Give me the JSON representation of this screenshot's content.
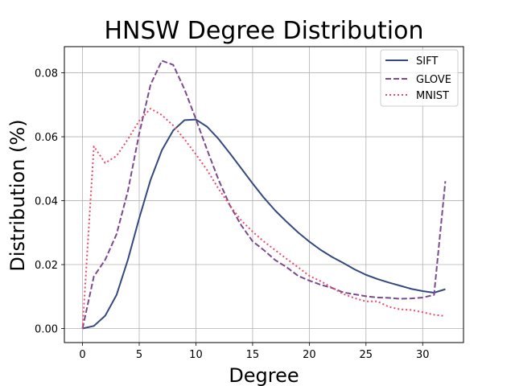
{
  "chart_data": {
    "type": "line",
    "title": "HNSW Degree Distribution",
    "xlabel": "Degree",
    "ylabel": "Distribution (%)",
    "xlim": [
      -1.6,
      33.6
    ],
    "ylim": [
      -0.0044,
      0.0882
    ],
    "xticks": [
      0,
      5,
      10,
      15,
      20,
      25,
      30
    ],
    "yticks": [
      0.0,
      0.02,
      0.04,
      0.06,
      0.08
    ],
    "xtick_labels": [
      "0",
      "5",
      "10",
      "15",
      "20",
      "25",
      "30"
    ],
    "ytick_labels": [
      "0.00",
      "0.02",
      "0.04",
      "0.06",
      "0.08"
    ],
    "grid": true,
    "legend_position": "top-right",
    "series": [
      {
        "name": "SIFT",
        "color": "#344a7f",
        "style": "solid",
        "x": [
          0,
          1,
          2,
          3,
          4,
          5,
          6,
          7,
          8,
          9,
          10,
          11,
          12,
          13,
          14,
          15,
          16,
          17,
          18,
          19,
          20,
          21,
          22,
          23,
          24,
          25,
          26,
          27,
          28,
          29,
          30,
          31,
          32
        ],
        "y": [
          0.0,
          0.0008,
          0.004,
          0.0105,
          0.0215,
          0.0345,
          0.0465,
          0.0558,
          0.062,
          0.0652,
          0.0654,
          0.0631,
          0.0593,
          0.0548,
          0.0501,
          0.0454,
          0.0409,
          0.0369,
          0.0334,
          0.0301,
          0.0272,
          0.0246,
          0.0224,
          0.0205,
          0.0185,
          0.0168,
          0.0155,
          0.0144,
          0.0134,
          0.0124,
          0.0117,
          0.0112,
          0.0123
        ]
      },
      {
        "name": "GLOVE",
        "color": "#7b4a8e",
        "style": "dashed",
        "x": [
          0,
          1,
          2,
          3,
          4,
          5,
          6,
          7,
          8,
          9,
          10,
          11,
          12,
          13,
          14,
          15,
          16,
          17,
          18,
          19,
          20,
          21,
          22,
          23,
          24,
          25,
          26,
          27,
          28,
          29,
          30,
          31,
          32
        ],
        "y": [
          0.0,
          0.0163,
          0.0215,
          0.0295,
          0.043,
          0.061,
          0.0763,
          0.0838,
          0.0825,
          0.0748,
          0.0655,
          0.0558,
          0.0465,
          0.0385,
          0.0323,
          0.0273,
          0.0245,
          0.0214,
          0.0192,
          0.0165,
          0.015,
          0.0137,
          0.0127,
          0.0113,
          0.0107,
          0.0101,
          0.0097,
          0.0096,
          0.0093,
          0.0094,
          0.0097,
          0.0105,
          0.0461
        ]
      },
      {
        "name": "MNIST",
        "color": "#ee4a6b",
        "style": "dotted",
        "x": [
          0,
          1,
          2,
          3,
          4,
          5,
          6,
          7,
          8,
          9,
          10,
          11,
          12,
          13,
          14,
          15,
          16,
          17,
          18,
          19,
          20,
          21,
          22,
          23,
          24,
          25,
          26,
          27,
          28,
          29,
          30,
          31,
          32
        ],
        "y": [
          0.0,
          0.057,
          0.0518,
          0.054,
          0.0592,
          0.065,
          0.0688,
          0.0668,
          0.0635,
          0.0592,
          0.0545,
          0.0495,
          0.0437,
          0.0385,
          0.0338,
          0.0303,
          0.0272,
          0.0245,
          0.0218,
          0.0192,
          0.0165,
          0.0148,
          0.0128,
          0.0108,
          0.0095,
          0.0085,
          0.0085,
          0.0068,
          0.006,
          0.0058,
          0.0051,
          0.0043,
          0.0039
        ]
      }
    ]
  }
}
